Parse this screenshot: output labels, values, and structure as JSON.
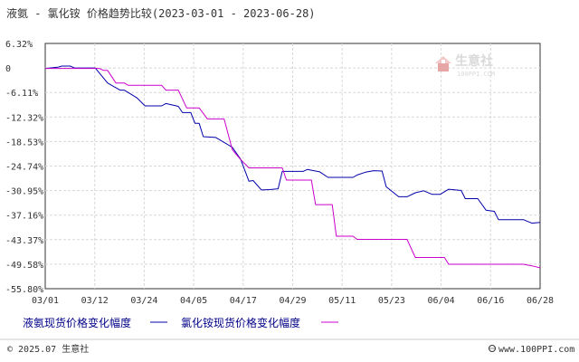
{
  "chart_data": {
    "type": "line",
    "title": "液氨 - 氯化铵 价格趋势比较(2023-03-01 - 2023-06-28)",
    "y_ticks": [
      "6.32%",
      "0",
      "-6.11%",
      "-12.32%",
      "-18.53%",
      "-24.74%",
      "-30.95%",
      "-37.16%",
      "-43.37%",
      "-49.58%",
      "-55.80%"
    ],
    "ylim": [
      -55.8,
      6.32
    ],
    "x_ticks": [
      "03/01",
      "03/12",
      "03/24",
      "04/05",
      "04/17",
      "04/29",
      "05/11",
      "05/23",
      "06/04",
      "06/16",
      "06/28"
    ],
    "x_start": "2023-03-01",
    "x_end": "2023-06-28",
    "series": [
      {
        "name": "液氨现货价格变化幅度",
        "color": "#0000aa",
        "points": [
          [
            "2023-03-01",
            0
          ],
          [
            "2023-03-04",
            0.3
          ],
          [
            "2023-03-05",
            0.6
          ],
          [
            "2023-03-07",
            0.6
          ],
          [
            "2023-03-08",
            0.1
          ],
          [
            "2023-03-13",
            0.1
          ],
          [
            "2023-03-16",
            -3.7
          ],
          [
            "2023-03-19",
            -5.5
          ],
          [
            "2023-03-20",
            -5.5
          ],
          [
            "2023-03-23",
            -7.4
          ],
          [
            "2023-03-25",
            -9.5
          ],
          [
            "2023-03-29",
            -9.5
          ],
          [
            "2023-03-30",
            -8.9
          ],
          [
            "2023-04-02",
            -9.6
          ],
          [
            "2023-04-03",
            -11.2
          ],
          [
            "2023-04-05",
            -11.2
          ],
          [
            "2023-04-06",
            -13.9
          ],
          [
            "2023-04-07",
            -13.9
          ],
          [
            "2023-04-08",
            -17.3
          ],
          [
            "2023-04-11",
            -17.5
          ],
          [
            "2023-04-15",
            -20.0
          ],
          [
            "2023-04-17",
            -23.0
          ],
          [
            "2023-04-19",
            -28.6
          ],
          [
            "2023-04-20",
            -28.4
          ],
          [
            "2023-04-22",
            -30.8
          ],
          [
            "2023-04-24",
            -30.7
          ],
          [
            "2023-04-26",
            -30.5
          ],
          [
            "2023-04-27",
            -26.1
          ],
          [
            "2023-05-02",
            -26.1
          ],
          [
            "2023-05-03",
            -25.6
          ],
          [
            "2023-05-06",
            -26.2
          ],
          [
            "2023-05-08",
            -27.6
          ],
          [
            "2023-05-14",
            -27.6
          ],
          [
            "2023-05-15",
            -27.0
          ],
          [
            "2023-05-17",
            -26.3
          ],
          [
            "2023-05-19",
            -25.9
          ],
          [
            "2023-05-21",
            -26.0
          ],
          [
            "2023-05-22",
            -30.0
          ],
          [
            "2023-05-25",
            -32.5
          ],
          [
            "2023-05-27",
            -32.5
          ],
          [
            "2023-05-29",
            -31.5
          ],
          [
            "2023-05-31",
            -31.0
          ],
          [
            "2023-06-02",
            -31.9
          ],
          [
            "2023-06-04",
            -31.9
          ],
          [
            "2023-06-06",
            -30.6
          ],
          [
            "2023-06-09",
            -30.9
          ],
          [
            "2023-06-10",
            -33.0
          ],
          [
            "2023-06-13",
            -33.0
          ],
          [
            "2023-06-15",
            -35.9
          ],
          [
            "2023-06-17",
            -36.2
          ],
          [
            "2023-06-18",
            -38.3
          ],
          [
            "2023-06-24",
            -38.3
          ],
          [
            "2023-06-26",
            -39.2
          ],
          [
            "2023-06-28",
            -39.0
          ]
        ]
      },
      {
        "name": "氯化铵现货价格变化幅度",
        "color": "#cc00cc",
        "points": [
          [
            "2023-03-01",
            0
          ],
          [
            "2023-03-14",
            0
          ],
          [
            "2023-03-15",
            -0.5
          ],
          [
            "2023-03-16",
            -0.5
          ],
          [
            "2023-03-18",
            -3.7
          ],
          [
            "2023-03-20",
            -3.7
          ],
          [
            "2023-03-21",
            -4.3
          ],
          [
            "2023-03-29",
            -4.3
          ],
          [
            "2023-03-30",
            -5.5
          ],
          [
            "2023-04-02",
            -5.5
          ],
          [
            "2023-04-04",
            -10.0
          ],
          [
            "2023-04-07",
            -10.0
          ],
          [
            "2023-04-09",
            -12.8
          ],
          [
            "2023-04-13",
            -12.8
          ],
          [
            "2023-04-15",
            -20.6
          ],
          [
            "2023-04-17",
            -23.1
          ],
          [
            "2023-04-19",
            -25.2
          ],
          [
            "2023-04-27",
            -25.2
          ],
          [
            "2023-04-28",
            -28.3
          ],
          [
            "2023-05-04",
            -28.3
          ],
          [
            "2023-05-05",
            -34.5
          ],
          [
            "2023-05-09",
            -34.5
          ],
          [
            "2023-05-10",
            -42.5
          ],
          [
            "2023-05-14",
            -42.5
          ],
          [
            "2023-05-15",
            -43.3
          ],
          [
            "2023-05-27",
            -43.3
          ],
          [
            "2023-05-29",
            -47.9
          ],
          [
            "2023-06-05",
            -47.9
          ],
          [
            "2023-06-06",
            -49.6
          ],
          [
            "2023-06-24",
            -49.6
          ],
          [
            "2023-06-26",
            -50.0
          ],
          [
            "2023-06-28",
            -50.5
          ]
        ]
      }
    ],
    "grid": true,
    "legend": "bottom"
  },
  "footer": {
    "left": "© 2025.07 生意社",
    "right": "www.100PPI.com"
  },
  "watermark": {
    "name": "生意社",
    "url": "100PPI.COM"
  }
}
